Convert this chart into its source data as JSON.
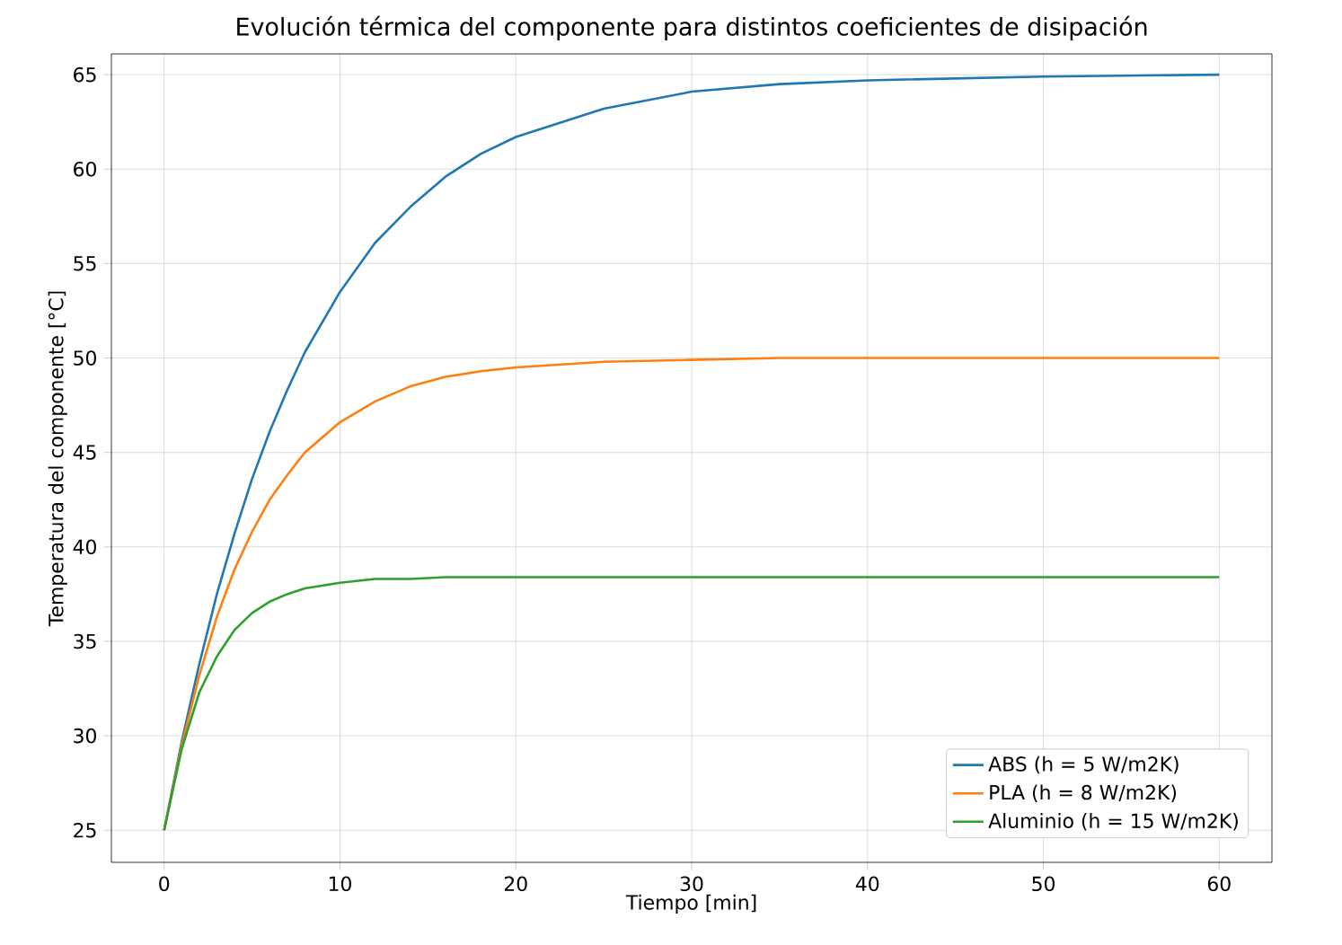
{
  "chart_data": {
    "type": "line",
    "title": "Evolución térmica del componente para distintos coeficientes de disipación",
    "xlabel": "Tiempo [min]",
    "ylabel": "Temperatura del componente [°C]",
    "x": [
      0,
      1,
      2,
      3,
      4,
      5,
      6,
      7,
      8,
      10,
      12,
      14,
      16,
      18,
      20,
      25,
      30,
      35,
      40,
      50,
      60
    ],
    "series": [
      {
        "name": "ABS (h = 5 W/m2K)",
        "color": "#1f77b4",
        "values": [
          25,
          29.7,
          33.8,
          37.5,
          40.7,
          43.6,
          46.1,
          48.3,
          50.3,
          53.5,
          56.1,
          58.0,
          59.6,
          60.8,
          61.7,
          63.2,
          64.1,
          64.5,
          64.7,
          64.9,
          65.0
        ]
      },
      {
        "name": "PLA (h = 8 W/m2K)",
        "color": "#ff7f0e",
        "values": [
          25,
          29.5,
          33.2,
          36.3,
          38.8,
          40.8,
          42.5,
          43.8,
          45.0,
          46.6,
          47.7,
          48.5,
          49.0,
          49.3,
          49.5,
          49.8,
          49.9,
          50.0,
          50.0,
          50.0,
          50.0
        ]
      },
      {
        "name": "Aluminio (h = 15 W/m2K)",
        "color": "#2ca02c",
        "values": [
          25,
          29.3,
          32.3,
          34.2,
          35.6,
          36.5,
          37.1,
          37.5,
          37.8,
          38.1,
          38.3,
          38.3,
          38.4,
          38.4,
          38.4,
          38.4,
          38.4,
          38.4,
          38.4,
          38.4,
          38.4
        ]
      }
    ],
    "xlim": [
      -3,
      63
    ],
    "ylim": [
      23.3,
      66.1
    ],
    "xticks": [
      0,
      10,
      20,
      30,
      40,
      50,
      60
    ],
    "yticks": [
      25,
      30,
      35,
      40,
      45,
      50,
      55,
      60,
      65
    ],
    "grid": true,
    "legend": "bottom right",
    "marker": "none",
    "line_style": "solid"
  }
}
